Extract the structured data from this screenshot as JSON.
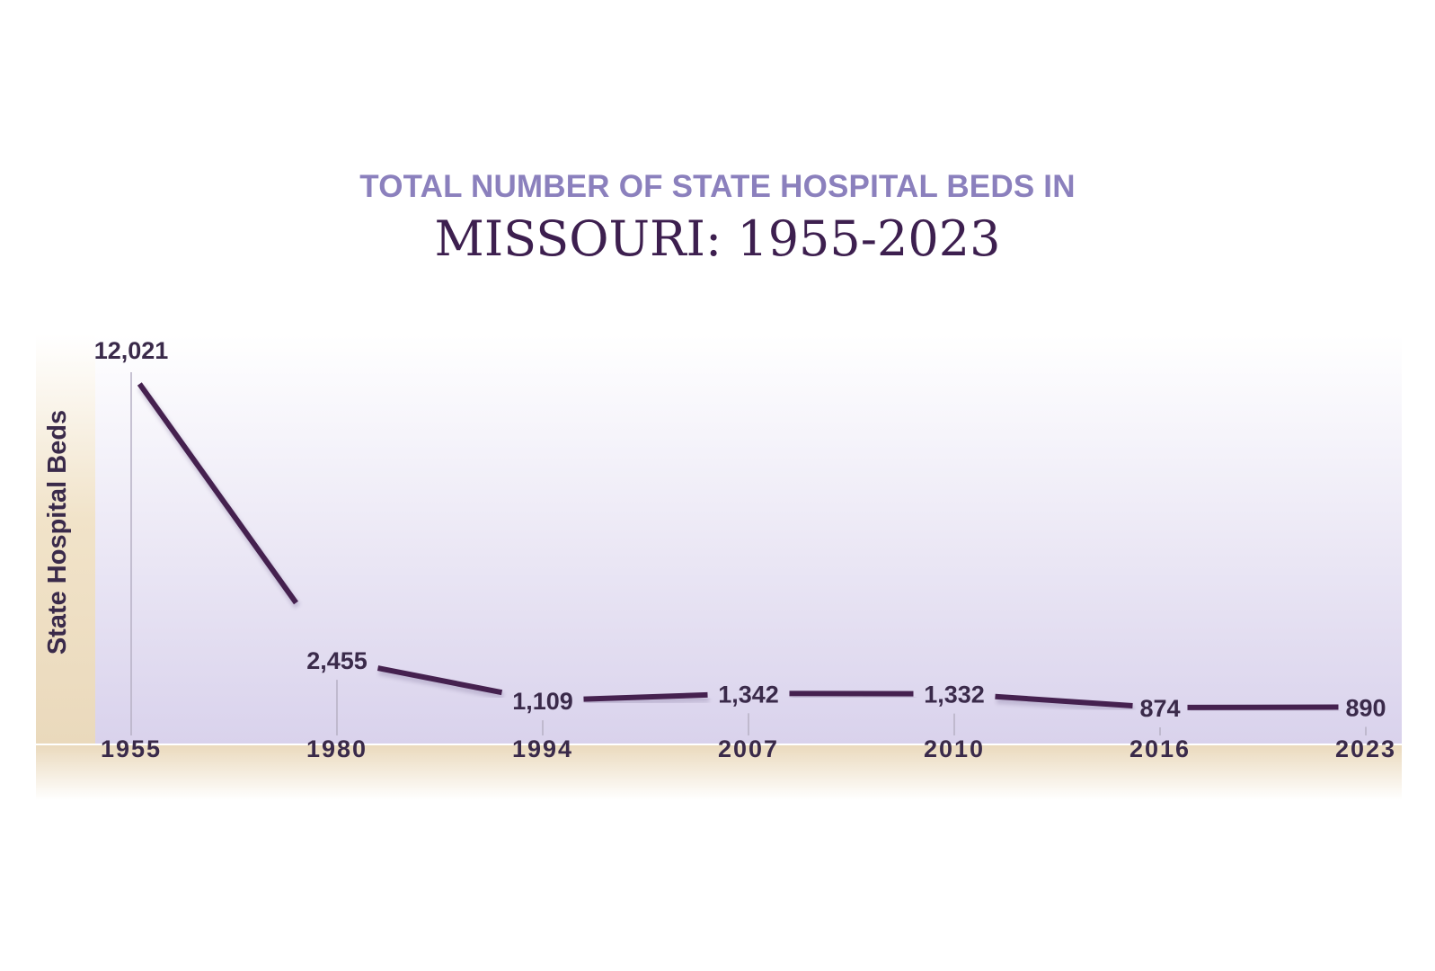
{
  "header": {
    "supertitle": "TOTAL NUMBER OF STATE HOSPITAL BEDS IN",
    "title": "MISSOURI: 1955-2023"
  },
  "colors": {
    "supertitle": "#8b80bd",
    "title": "#3d1f4f",
    "line": "#45214f",
    "text": "#3a2a4a",
    "plot_top": "#ffffff",
    "plot_bottom": "#d9d2ec",
    "axis_band": "#ecdcc0"
  },
  "chart_data": {
    "type": "line",
    "title": "TOTAL NUMBER OF STATE HOSPITAL BEDS IN MISSOURI: 1955-2023",
    "xlabel": "",
    "ylabel": "State Hospital Beds",
    "categories": [
      "1955",
      "1980",
      "1994",
      "2007",
      "2010",
      "2016",
      "2023"
    ],
    "values": [
      12021,
      2455,
      1109,
      1342,
      1332,
      874,
      890
    ],
    "value_labels": [
      "12,021",
      "2,455",
      "1,109",
      "1,342",
      "1,332",
      "874",
      "890"
    ],
    "ylim": [
      0,
      12021
    ],
    "grid": false,
    "legend": "none"
  }
}
